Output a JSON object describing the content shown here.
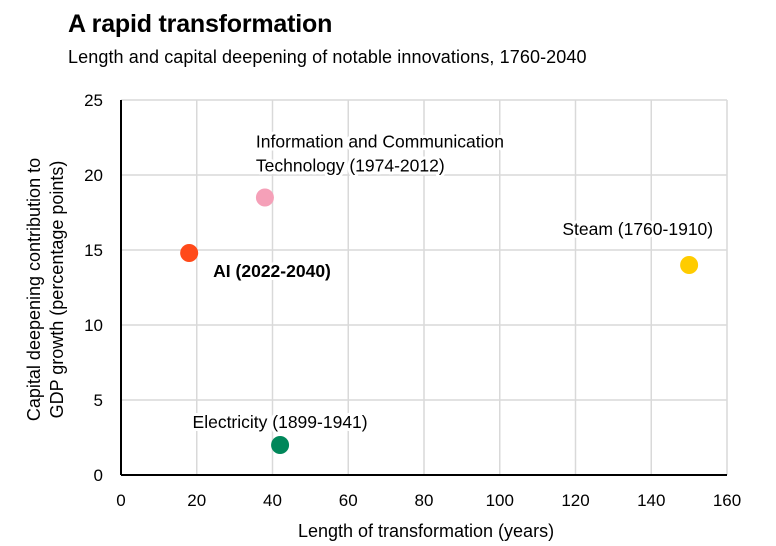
{
  "chart_data": {
    "type": "scatter",
    "title": "A rapid transformation",
    "subtitle": "Length and capital deepening of notable innovations, 1760-2040",
    "xlabel": "Length of transformation (years)",
    "ylabel_lines": [
      "Capital deepening contribution to",
      "GDP growth (percentage points)"
    ],
    "xlim": [
      0,
      160
    ],
    "ylim": [
      0,
      25
    ],
    "x_ticks": [
      0,
      20,
      40,
      60,
      80,
      100,
      120,
      140,
      160
    ],
    "y_ticks": [
      0,
      5,
      10,
      15,
      20,
      25
    ],
    "grid": true,
    "points": [
      {
        "id": "ict",
        "label_lines": [
          "Information and Communication",
          "Technology (1974-2012)"
        ],
        "x": 38,
        "y": 18.5,
        "color": "#f5a0b8",
        "bold": false
      },
      {
        "id": "ai",
        "label_lines": [
          "AI (2022-2040)"
        ],
        "x": 18,
        "y": 14.8,
        "color": "#ff4a1a",
        "bold": true
      },
      {
        "id": "steam",
        "label_lines": [
          "Steam (1760-1910)"
        ],
        "x": 150,
        "y": 14,
        "color": "#ffcc00",
        "bold": false
      },
      {
        "id": "electricity",
        "label_lines": [
          "Electricity (1899-1941)"
        ],
        "x": 42,
        "y": 2,
        "color": "#00875a",
        "bold": false
      }
    ]
  }
}
